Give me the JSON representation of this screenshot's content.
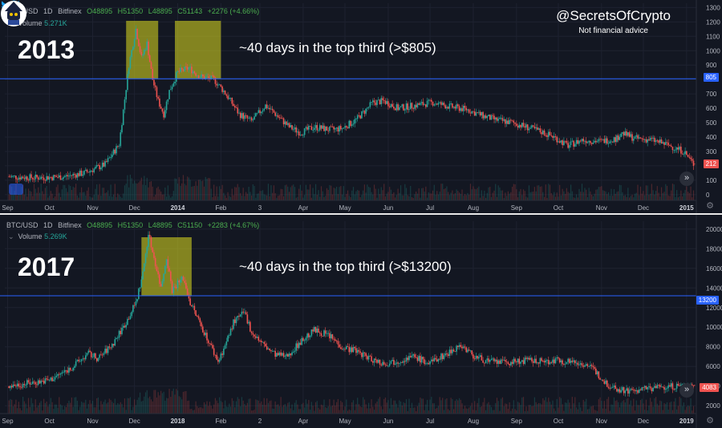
{
  "brand": {
    "handle": "@SecretsOfCrypto",
    "disclaimer": "Not financial advice",
    "icon": "twitter-bird-icon"
  },
  "colors": {
    "background": "#131722",
    "up": "#26a69a",
    "down": "#ef5350",
    "highlight": "#c8c81e",
    "threshold_line": "#2962ff"
  },
  "chart_data": [
    {
      "type": "candlestick",
      "header": {
        "symbol": "BTC/USD",
        "interval": "1D",
        "exchange": "Bitfinex",
        "open": "O48895",
        "high": "H51350",
        "low": "L48895",
        "close": "C51143",
        "change": "+2276 (+4.66%)"
      },
      "volume_label": "Volume",
      "volume_value": "5.271K",
      "year_label": "2013",
      "annotation": "~40 days in the top third (>$805)",
      "threshold": 805,
      "threshold_label": "805",
      "last_price": 212,
      "last_price_label": "212",
      "y_ticks": [
        0,
        100,
        200,
        300,
        400,
        500,
        600,
        700,
        800,
        900,
        1000,
        1100,
        1200,
        1300
      ],
      "ylim": [
        -40,
        1330
      ],
      "x_ticks": [
        {
          "label": "Sep",
          "t": 0
        },
        {
          "label": "Oct",
          "t": 30
        },
        {
          "label": "Nov",
          "t": 61
        },
        {
          "label": "Dec",
          "t": 91
        },
        {
          "label": "2014",
          "t": 122
        },
        {
          "label": "Feb",
          "t": 153
        },
        {
          "label": "3",
          "t": 181
        },
        {
          "label": "Apr",
          "t": 212
        },
        {
          "label": "May",
          "t": 242
        },
        {
          "label": "Jun",
          "t": 273
        },
        {
          "label": "Jul",
          "t": 303
        },
        {
          "label": "Aug",
          "t": 334
        },
        {
          "label": "Sep",
          "t": 365
        },
        {
          "label": "Oct",
          "t": 395
        },
        {
          "label": "Nov",
          "t": 426
        },
        {
          "label": "Dec",
          "t": 456
        },
        {
          "label": "2015",
          "t": 487
        }
      ],
      "highlights": [
        {
          "t0": 85,
          "t1": 108
        },
        {
          "t0": 120,
          "t1": 153
        }
      ],
      "price_path": [
        [
          0,
          125
        ],
        [
          20,
          118
        ],
        [
          40,
          124
        ],
        [
          55,
          150
        ],
        [
          70,
          210
        ],
        [
          80,
          350
        ],
        [
          87,
          900
        ],
        [
          92,
          1150
        ],
        [
          96,
          950
        ],
        [
          100,
          1050
        ],
        [
          104,
          800
        ],
        [
          108,
          650
        ],
        [
          112,
          560
        ],
        [
          116,
          720
        ],
        [
          122,
          850
        ],
        [
          130,
          880
        ],
        [
          138,
          820
        ],
        [
          148,
          800
        ],
        [
          155,
          720
        ],
        [
          160,
          650
        ],
        [
          166,
          560
        ],
        [
          175,
          510
        ],
        [
          185,
          620
        ],
        [
          192,
          560
        ],
        [
          202,
          470
        ],
        [
          210,
          430
        ],
        [
          220,
          470
        ],
        [
          232,
          450
        ],
        [
          240,
          460
        ],
        [
          250,
          520
        ],
        [
          262,
          640
        ],
        [
          270,
          650
        ],
        [
          280,
          600
        ],
        [
          292,
          620
        ],
        [
          305,
          640
        ],
        [
          318,
          610
        ],
        [
          330,
          590
        ],
        [
          340,
          550
        ],
        [
          350,
          520
        ],
        [
          362,
          500
        ],
        [
          372,
          470
        ],
        [
          382,
          440
        ],
        [
          392,
          400
        ],
        [
          402,
          340
        ],
        [
          412,
          380
        ],
        [
          425,
          370
        ],
        [
          437,
          390
        ],
        [
          440,
          430
        ],
        [
          450,
          390
        ],
        [
          462,
          380
        ],
        [
          475,
          340
        ],
        [
          485,
          300
        ],
        [
          492,
          212
        ]
      ]
    },
    {
      "type": "candlestick",
      "header": {
        "symbol": "BTC/USD",
        "interval": "1D",
        "exchange": "Bitfinex",
        "open": "O48895",
        "high": "H51350",
        "low": "L48895",
        "close": "C51150",
        "change": "+2283 (+4.67%)"
      },
      "volume_label": "Volume",
      "volume_value": "5.269K",
      "year_label": "2017",
      "annotation": "~40 days in the top third (>$13200)",
      "threshold": 13200,
      "threshold_label": "13200",
      "last_price": 4083,
      "last_price_label": "4083",
      "y_ticks": [
        2000,
        4000,
        6000,
        8000,
        10000,
        12000,
        14000,
        16000,
        18000,
        20000
      ],
      "ylim": [
        1200,
        20800
      ],
      "x_ticks": [
        {
          "label": "Sep",
          "t": 0
        },
        {
          "label": "Oct",
          "t": 30
        },
        {
          "label": "Nov",
          "t": 61
        },
        {
          "label": "Dec",
          "t": 91
        },
        {
          "label": "2018",
          "t": 122
        },
        {
          "label": "Feb",
          "t": 153
        },
        {
          "label": "2",
          "t": 181
        },
        {
          "label": "Apr",
          "t": 212
        },
        {
          "label": "May",
          "t": 242
        },
        {
          "label": "Jun",
          "t": 273
        },
        {
          "label": "Jul",
          "t": 303
        },
        {
          "label": "Aug",
          "t": 334
        },
        {
          "label": "Sep",
          "t": 365
        },
        {
          "label": "Oct",
          "t": 395
        },
        {
          "label": "Nov",
          "t": 426
        },
        {
          "label": "Dec",
          "t": 456
        },
        {
          "label": "2019",
          "t": 487
        }
      ],
      "highlights": [
        {
          "t0": 96,
          "t1": 132
        }
      ],
      "price_path": [
        [
          0,
          4000
        ],
        [
          15,
          4300
        ],
        [
          30,
          4600
        ],
        [
          45,
          5800
        ],
        [
          58,
          7300
        ],
        [
          65,
          6800
        ],
        [
          75,
          8200
        ],
        [
          85,
          10500
        ],
        [
          92,
          12500
        ],
        [
          97,
          15500
        ],
        [
          101,
          19500
        ],
        [
          106,
          16500
        ],
        [
          110,
          14000
        ],
        [
          114,
          17200
        ],
        [
          118,
          13800
        ],
        [
          122,
          14500
        ],
        [
          126,
          15000
        ],
        [
          131,
          12500
        ],
        [
          136,
          11000
        ],
        [
          141,
          9500
        ],
        [
          146,
          8000
        ],
        [
          151,
          6500
        ],
        [
          157,
          8500
        ],
        [
          162,
          10500
        ],
        [
          170,
          11500
        ],
        [
          175,
          9500
        ],
        [
          185,
          8000
        ],
        [
          192,
          7200
        ],
        [
          200,
          7000
        ],
        [
          210,
          8500
        ],
        [
          220,
          9700
        ],
        [
          230,
          9200
        ],
        [
          240,
          8000
        ],
        [
          250,
          7600
        ],
        [
          260,
          6800
        ],
        [
          270,
          6300
        ],
        [
          280,
          6600
        ],
        [
          292,
          7000
        ],
        [
          302,
          6300
        ],
        [
          315,
          7300
        ],
        [
          325,
          8200
        ],
        [
          335,
          7000
        ],
        [
          345,
          6500
        ],
        [
          360,
          6400
        ],
        [
          372,
          6600
        ],
        [
          385,
          6500
        ],
        [
          395,
          6600
        ],
        [
          405,
          6500
        ],
        [
          415,
          6200
        ],
        [
          420,
          5700
        ],
        [
          430,
          4200
        ],
        [
          440,
          3600
        ],
        [
          450,
          3500
        ],
        [
          460,
          3800
        ],
        [
          470,
          3900
        ],
        [
          482,
          4000
        ],
        [
          492,
          4083
        ]
      ]
    }
  ]
}
